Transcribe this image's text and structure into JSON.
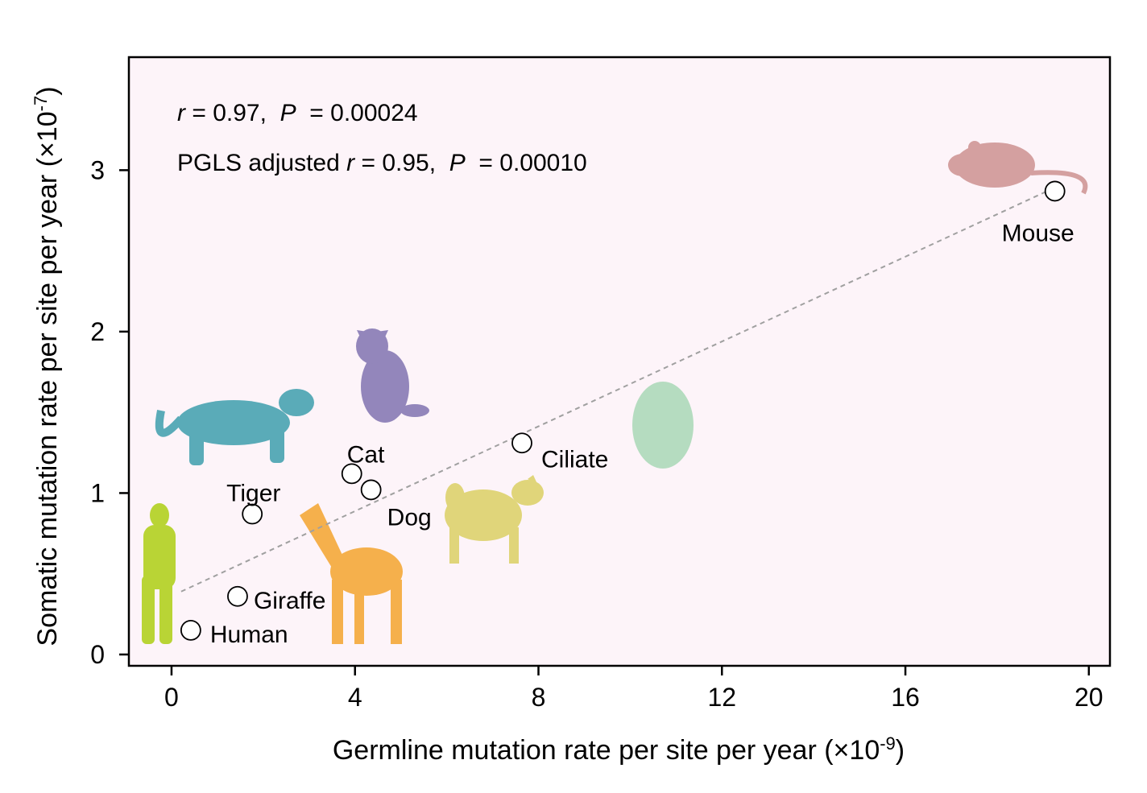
{
  "chart_data": {
    "type": "scatter",
    "xlabel": "Germline mutation rate per site per year (×10",
    "xlabel_exp": "-9",
    "xlabel_close": ")",
    "ylabel": "Somatic mutation rate per site per year (×10",
    "ylabel_exp": "-7",
    "ylabel_close": ")",
    "xlim": [
      -0.93,
      20.46
    ],
    "ylim": [
      -0.07,
      3.7
    ],
    "xticks": [
      0,
      4,
      8,
      12,
      16,
      20
    ],
    "yticks": [
      0,
      1,
      2,
      3
    ],
    "grid": false,
    "background": "#fdf4f9",
    "points": [
      {
        "label": "Human",
        "x": 0.42,
        "y": 0.15,
        "color": "#b9d435"
      },
      {
        "label": "Giraffe",
        "x": 1.44,
        "y": 0.36,
        "color": "#f5b04c"
      },
      {
        "label": "Tiger",
        "x": 1.76,
        "y": 0.87,
        "color": "#5aabb8"
      },
      {
        "label": "Cat",
        "x": 3.93,
        "y": 1.12,
        "color": "#9386bb"
      },
      {
        "label": "Dog",
        "x": 4.35,
        "y": 1.02,
        "color": "#e0d57a"
      },
      {
        "label": "Ciliate",
        "x": 7.64,
        "y": 1.31,
        "color": "#b5dcc0"
      },
      {
        "label": "Mouse",
        "x": 19.26,
        "y": 2.87,
        "color": "#d4a0a0"
      }
    ],
    "fit_line": {
      "x": [
        0.21,
        19.09
      ],
      "y": [
        0.39,
        2.87
      ],
      "style": "dashed",
      "color": "#a0a0a0"
    },
    "annotations": [
      {
        "prefix": "",
        "r_label": "r",
        "r_text": " = 0.97,  ",
        "p_label": "P",
        "p_text": "  = 0.00024"
      },
      {
        "prefix": "PGLS adjusted ",
        "r_label": "r",
        "r_text": " = 0.95,  ",
        "p_label": "P",
        "p_text": "  = 0.00010"
      }
    ]
  }
}
